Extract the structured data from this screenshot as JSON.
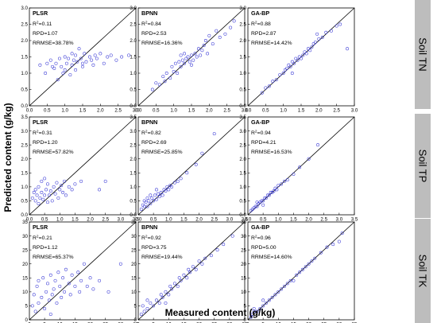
{
  "figure": {
    "xlabel": "Measured content (g/kg)",
    "ylabel": "Predicted content (g/kg)",
    "strip_labels": [
      "Soil TN",
      "Soil TP",
      "Soil TK"
    ]
  },
  "colors": {
    "points": "#3a3ad6",
    "line": "#000000",
    "strip": "#bdbdbd"
  },
  "rows": [
    {
      "name": "Soil TN",
      "range": [
        0,
        3
      ],
      "ticks": [
        "0.0",
        "0.5",
        "1.0",
        "1.5",
        "2.0",
        "2.5",
        "3.0"
      ],
      "step": 0.5
    },
    {
      "name": "Soil TP",
      "range": [
        0,
        3.5
      ],
      "ticks": [
        "0.0",
        "0.5",
        "1.0",
        "1.5",
        "2.0",
        "2.5",
        "3.0",
        "3.5"
      ],
      "step": 0.5
    },
    {
      "name": "Soil TK",
      "range": [
        0,
        35
      ],
      "ticks": [
        "0",
        "5",
        "10",
        "15",
        "20",
        "25",
        "30",
        "35"
      ],
      "step": 5
    }
  ],
  "chart_data": [
    {
      "type": "scatter",
      "row": 0,
      "col": 0,
      "model": "PLSR",
      "r2": "0.11",
      "rpd": "RPD=1.07",
      "rrmse": "RRMSE=38.78%",
      "xlim": [
        0,
        3
      ],
      "ylim": [
        0,
        3
      ],
      "points": [
        [
          0.3,
          1.25
        ],
        [
          0.45,
          1.0
        ],
        [
          0.5,
          1.3
        ],
        [
          0.6,
          1.4
        ],
        [
          0.7,
          1.15
        ],
        [
          0.75,
          1.3
        ],
        [
          0.8,
          0.8
        ],
        [
          0.85,
          1.45
        ],
        [
          0.9,
          1.2
        ],
        [
          0.95,
          1.0
        ],
        [
          1.0,
          1.5
        ],
        [
          1.0,
          1.1
        ],
        [
          1.05,
          1.3
        ],
        [
          1.1,
          1.45
        ],
        [
          1.15,
          0.95
        ],
        [
          1.2,
          1.25
        ],
        [
          1.2,
          1.6
        ],
        [
          1.25,
          1.4
        ],
        [
          1.3,
          1.55
        ],
        [
          1.35,
          1.35
        ],
        [
          1.4,
          1.75
        ],
        [
          1.45,
          1.45
        ],
        [
          1.5,
          1.2
        ],
        [
          1.5,
          1.3
        ],
        [
          1.55,
          1.6
        ],
        [
          1.6,
          1.35
        ],
        [
          1.7,
          1.5
        ],
        [
          1.75,
          1.4
        ],
        [
          1.8,
          1.25
        ],
        [
          1.85,
          1.55
        ],
        [
          1.9,
          1.45
        ],
        [
          2.0,
          1.6
        ],
        [
          2.1,
          1.3
        ],
        [
          2.2,
          1.5
        ],
        [
          2.3,
          1.55
        ],
        [
          2.45,
          1.4
        ],
        [
          2.6,
          1.5
        ],
        [
          2.8,
          1.55
        ],
        [
          1.3,
          1.1
        ],
        [
          0.65,
          1.2
        ]
      ]
    },
    {
      "type": "scatter",
      "row": 0,
      "col": 1,
      "model": "BPNN",
      "r2": "0.84",
      "rpd": "RPD=2.53",
      "rrmse": "RRMSE=16.36%",
      "xlim": [
        0,
        3
      ],
      "ylim": [
        0,
        3
      ],
      "points": [
        [
          0.4,
          0.5
        ],
        [
          0.5,
          0.7
        ],
        [
          0.6,
          0.65
        ],
        [
          0.7,
          0.9
        ],
        [
          0.75,
          0.75
        ],
        [
          0.8,
          1.0
        ],
        [
          0.9,
          0.85
        ],
        [
          1.0,
          1.05
        ],
        [
          1.05,
          1.3
        ],
        [
          1.1,
          1.0
        ],
        [
          1.15,
          1.35
        ],
        [
          1.2,
          1.2
        ],
        [
          1.25,
          1.4
        ],
        [
          1.3,
          1.3
        ],
        [
          1.35,
          1.45
        ],
        [
          1.4,
          1.5
        ],
        [
          1.45,
          1.35
        ],
        [
          1.5,
          1.55
        ],
        [
          1.55,
          1.4
        ],
        [
          1.6,
          1.6
        ],
        [
          1.65,
          1.5
        ],
        [
          1.7,
          1.75
        ],
        [
          1.75,
          1.55
        ],
        [
          1.8,
          1.7
        ],
        [
          1.85,
          1.85
        ],
        [
          1.9,
          2.0
        ],
        [
          1.95,
          1.6
        ],
        [
          2.0,
          2.15
        ],
        [
          2.1,
          1.9
        ],
        [
          2.2,
          2.3
        ],
        [
          2.3,
          2.1
        ],
        [
          2.45,
          2.2
        ],
        [
          2.6,
          2.4
        ],
        [
          2.7,
          2.6
        ],
        [
          1.2,
          1.55
        ],
        [
          0.95,
          1.2
        ],
        [
          1.5,
          1.25
        ],
        [
          1.3,
          1.6
        ]
      ]
    },
    {
      "type": "scatter",
      "row": 0,
      "col": 2,
      "model": "GA-BP",
      "r2": "0.88",
      "rpd": "RPD=2.87",
      "rrmse": "RRMSE=14.42%",
      "xlim": [
        0,
        3
      ],
      "ylim": [
        0,
        3
      ],
      "points": [
        [
          0.4,
          0.4
        ],
        [
          0.5,
          0.55
        ],
        [
          0.6,
          0.6
        ],
        [
          0.7,
          0.75
        ],
        [
          0.8,
          0.8
        ],
        [
          0.9,
          0.95
        ],
        [
          1.0,
          1.0
        ],
        [
          1.05,
          1.1
        ],
        [
          1.1,
          1.15
        ],
        [
          1.15,
          1.25
        ],
        [
          1.2,
          1.2
        ],
        [
          1.25,
          1.35
        ],
        [
          1.3,
          1.3
        ],
        [
          1.35,
          1.45
        ],
        [
          1.4,
          1.4
        ],
        [
          1.45,
          1.5
        ],
        [
          1.5,
          1.45
        ],
        [
          1.55,
          1.55
        ],
        [
          1.6,
          1.65
        ],
        [
          1.65,
          1.6
        ],
        [
          1.7,
          1.75
        ],
        [
          1.75,
          1.7
        ],
        [
          1.8,
          1.8
        ],
        [
          1.85,
          1.9
        ],
        [
          1.9,
          1.95
        ],
        [
          2.0,
          2.05
        ],
        [
          2.1,
          2.1
        ],
        [
          2.2,
          2.25
        ],
        [
          2.35,
          2.3
        ],
        [
          2.5,
          2.45
        ],
        [
          2.6,
          2.5
        ],
        [
          2.8,
          1.75
        ],
        [
          1.95,
          2.2
        ],
        [
          1.25,
          1.0
        ]
      ]
    },
    {
      "type": "scatter",
      "row": 1,
      "col": 0,
      "model": "PLSR",
      "r2": "0.31",
      "rpd": "RPD=1.20",
      "rrmse": "RRMSE=57.82%",
      "xlim": [
        0,
        3.5
      ],
      "ylim": [
        0,
        3.5
      ],
      "points": [
        [
          0.1,
          0.6
        ],
        [
          0.15,
          0.8
        ],
        [
          0.2,
          0.5
        ],
        [
          0.2,
          0.9
        ],
        [
          0.25,
          0.7
        ],
        [
          0.3,
          0.4
        ],
        [
          0.3,
          1.0
        ],
        [
          0.35,
          0.6
        ],
        [
          0.4,
          0.8
        ],
        [
          0.45,
          0.55
        ],
        [
          0.5,
          1.3
        ],
        [
          0.5,
          0.7
        ],
        [
          0.55,
          0.9
        ],
        [
          0.6,
          0.45
        ],
        [
          0.6,
          1.1
        ],
        [
          0.65,
          0.7
        ],
        [
          0.7,
          0.85
        ],
        [
          0.75,
          0.5
        ],
        [
          0.8,
          1.0
        ],
        [
          0.85,
          0.75
        ],
        [
          0.9,
          1.15
        ],
        [
          0.95,
          0.6
        ],
        [
          1.0,
          0.9
        ],
        [
          1.05,
          1.05
        ],
        [
          1.1,
          0.8
        ],
        [
          1.15,
          1.2
        ],
        [
          1.2,
          0.7
        ],
        [
          1.3,
          1.0
        ],
        [
          1.4,
          0.9
        ],
        [
          1.5,
          1.1
        ],
        [
          1.7,
          1.2
        ],
        [
          2.3,
          0.9
        ],
        [
          2.5,
          1.2
        ],
        [
          0.4,
          1.2
        ]
      ]
    },
    {
      "type": "scatter",
      "row": 1,
      "col": 1,
      "model": "BPNN",
      "r2": "0.82",
      "rpd": "RPD=2.69",
      "rrmse": "RRMSE=25.85%",
      "xlim": [
        0,
        3.5
      ],
      "ylim": [
        0,
        3.5
      ],
      "points": [
        [
          0.1,
          0.2
        ],
        [
          0.15,
          0.35
        ],
        [
          0.2,
          0.3
        ],
        [
          0.2,
          0.5
        ],
        [
          0.25,
          0.45
        ],
        [
          0.3,
          0.3
        ],
        [
          0.3,
          0.6
        ],
        [
          0.35,
          0.5
        ],
        [
          0.4,
          0.4
        ],
        [
          0.45,
          0.6
        ],
        [
          0.5,
          0.5
        ],
        [
          0.55,
          0.7
        ],
        [
          0.6,
          0.55
        ],
        [
          0.65,
          0.75
        ],
        [
          0.7,
          0.65
        ],
        [
          0.75,
          0.8
        ],
        [
          0.8,
          0.7
        ],
        [
          0.85,
          0.9
        ],
        [
          0.9,
          0.85
        ],
        [
          0.95,
          1.0
        ],
        [
          1.0,
          0.9
        ],
        [
          1.05,
          1.05
        ],
        [
          1.1,
          1.0
        ],
        [
          1.2,
          1.15
        ],
        [
          1.3,
          1.2
        ],
        [
          1.4,
          1.3
        ],
        [
          1.6,
          1.5
        ],
        [
          1.9,
          1.8
        ],
        [
          2.1,
          2.2
        ],
        [
          2.5,
          2.9
        ],
        [
          0.4,
          0.7
        ],
        [
          0.6,
          0.9
        ]
      ]
    },
    {
      "type": "scatter",
      "row": 1,
      "col": 2,
      "model": "GA-BP",
      "r2": "0.94",
      "rpd": "RPD=4.21",
      "rrmse": "RRMSE=16.53%",
      "xlim": [
        0,
        3.5
      ],
      "ylim": [
        0,
        3.5
      ],
      "points": [
        [
          0.1,
          0.15
        ],
        [
          0.15,
          0.2
        ],
        [
          0.2,
          0.25
        ],
        [
          0.25,
          0.3
        ],
        [
          0.3,
          0.3
        ],
        [
          0.35,
          0.4
        ],
        [
          0.4,
          0.45
        ],
        [
          0.45,
          0.5
        ],
        [
          0.5,
          0.5
        ],
        [
          0.55,
          0.6
        ],
        [
          0.6,
          0.6
        ],
        [
          0.65,
          0.7
        ],
        [
          0.7,
          0.7
        ],
        [
          0.75,
          0.8
        ],
        [
          0.8,
          0.8
        ],
        [
          0.85,
          0.85
        ],
        [
          0.9,
          0.95
        ],
        [
          0.95,
          0.9
        ],
        [
          1.0,
          1.05
        ],
        [
          1.1,
          1.1
        ],
        [
          1.2,
          1.2
        ],
        [
          1.3,
          1.25
        ],
        [
          1.5,
          1.45
        ],
        [
          1.7,
          1.7
        ],
        [
          2.0,
          2.0
        ],
        [
          2.3,
          2.5
        ],
        [
          0.3,
          0.45
        ],
        [
          0.5,
          0.35
        ]
      ]
    },
    {
      "type": "scatter",
      "row": 2,
      "col": 0,
      "model": "PLSR",
      "r2": "0.21",
      "rpd": "RPD=1.12",
      "rrmse": "RRMSE=65.37%",
      "xlim": [
        0,
        35
      ],
      "ylim": [
        0,
        35
      ],
      "points": [
        [
          1,
          5
        ],
        [
          1.5,
          9
        ],
        [
          2,
          3
        ],
        [
          2.5,
          12
        ],
        [
          3,
          6
        ],
        [
          4,
          8
        ],
        [
          4.5,
          15
        ],
        [
          5,
          4
        ],
        [
          5.5,
          10
        ],
        [
          6,
          13
        ],
        [
          6.5,
          7
        ],
        [
          7,
          16
        ],
        [
          7.5,
          9
        ],
        [
          8,
          11
        ],
        [
          8.5,
          14
        ],
        [
          9,
          6
        ],
        [
          9.5,
          17
        ],
        [
          10,
          12
        ],
        [
          10.5,
          8
        ],
        [
          11,
          15
        ],
        [
          11.5,
          10
        ],
        [
          12,
          18
        ],
        [
          13,
          13
        ],
        [
          13.5,
          9
        ],
        [
          14,
          16
        ],
        [
          15,
          12
        ],
        [
          16,
          17
        ],
        [
          16.5,
          10
        ],
        [
          17,
          14
        ],
        [
          18,
          20
        ],
        [
          19,
          12
        ],
        [
          20,
          15
        ],
        [
          21,
          11
        ],
        [
          23,
          14
        ],
        [
          26,
          10
        ],
        [
          30,
          20
        ],
        [
          3,
          14
        ],
        [
          7,
          2
        ]
      ]
    },
    {
      "type": "scatter",
      "row": 2,
      "col": 1,
      "model": "BPNN",
      "r2": "0.92",
      "rpd": "RPD=3.75",
      "rrmse": "RRMSE=19.44%",
      "xlim": [
        0,
        35
      ],
      "ylim": [
        0,
        35
      ],
      "points": [
        [
          1,
          2
        ],
        [
          1.5,
          5
        ],
        [
          2,
          3
        ],
        [
          3,
          4
        ],
        [
          4,
          6
        ],
        [
          5,
          5
        ],
        [
          6,
          7
        ],
        [
          7,
          6
        ],
        [
          7.5,
          9
        ],
        [
          8,
          8
        ],
        [
          9,
          10
        ],
        [
          10,
          9
        ],
        [
          10.5,
          12
        ],
        [
          11,
          11
        ],
        [
          12,
          13
        ],
        [
          13,
          12
        ],
        [
          13.5,
          15
        ],
        [
          14,
          14
        ],
        [
          15,
          16
        ],
        [
          16,
          15
        ],
        [
          16.5,
          18
        ],
        [
          17,
          17
        ],
        [
          18,
          19
        ],
        [
          19,
          18
        ],
        [
          20,
          21
        ],
        [
          21,
          20
        ],
        [
          22,
          22
        ],
        [
          24,
          23
        ],
        [
          26,
          25
        ],
        [
          28,
          27
        ],
        [
          31,
          30
        ],
        [
          3,
          7
        ],
        [
          9,
          6
        ]
      ]
    },
    {
      "type": "scatter",
      "row": 2,
      "col": 2,
      "model": "GA-BP",
      "r2": "0.96",
      "rpd": "RPD=5.00",
      "rrmse": "RRMSE=14.60%",
      "xlim": [
        0,
        35
      ],
      "ylim": [
        0,
        35
      ],
      "points": [
        [
          1,
          1
        ],
        [
          1.5,
          2
        ],
        [
          2,
          3
        ],
        [
          3,
          3
        ],
        [
          4,
          4
        ],
        [
          5,
          5
        ],
        [
          6,
          6
        ],
        [
          7,
          7
        ],
        [
          8,
          8
        ],
        [
          9,
          9
        ],
        [
          10,
          10
        ],
        [
          11,
          11
        ],
        [
          12,
          12
        ],
        [
          13,
          13
        ],
        [
          14,
          14
        ],
        [
          15,
          14
        ],
        [
          16,
          16
        ],
        [
          17,
          17
        ],
        [
          18,
          18
        ],
        [
          19,
          19
        ],
        [
          20,
          20
        ],
        [
          21,
          21
        ],
        [
          22,
          22
        ],
        [
          24,
          24
        ],
        [
          26,
          26
        ],
        [
          28,
          27
        ],
        [
          31,
          31
        ],
        [
          5,
          7
        ],
        [
          2,
          4
        ],
        [
          30,
          28
        ]
      ]
    }
  ]
}
